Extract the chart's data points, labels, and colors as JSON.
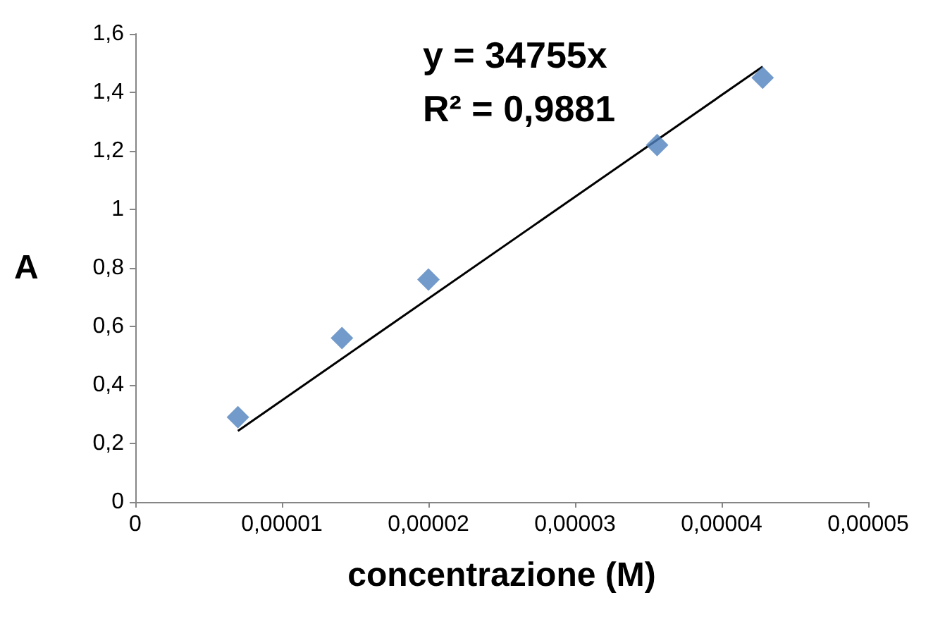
{
  "chart_data": {
    "type": "scatter",
    "xlabel": "concentrazione (M)",
    "ylabel": "A",
    "x": [
      7e-06,
      1.41e-05,
      2e-05,
      3.56e-05,
      4.28e-05
    ],
    "series": [
      {
        "color": "#4f81bd",
        "values": [
          0.29,
          0.56,
          0.76,
          1.22,
          1.45
        ]
      },
      {
        "type": "line",
        "color": "#000000",
        "marker": "none",
        "x": [
          7e-06,
          4.28e-05
        ],
        "values": [
          0.243,
          1.488
        ]
      }
    ],
    "xlim": [
      0,
      5e-05
    ],
    "xticks": [
      0,
      {
        "value": 1e-05,
        "label": "0,00001"
      },
      {
        "value": 2e-05,
        "label": "0,00002"
      },
      {
        "value": 3e-05,
        "label": "0,00003"
      },
      {
        "value": 4e-05,
        "label": "0,00004"
      },
      {
        "value": 5e-05,
        "label": "0,00005"
      }
    ],
    "ylim": [
      0,
      1.6
    ],
    "yticks": [
      0,
      {
        "value": 0.2,
        "label": "0,2"
      },
      {
        "value": 0.4,
        "label": "0,4"
      },
      {
        "value": 0.6,
        "label": "0,6"
      },
      {
        "value": 0.8,
        "label": "0,8"
      },
      1,
      {
        "value": 1.2,
        "label": "1,2"
      },
      {
        "value": 1.4,
        "label": "1,4"
      },
      {
        "value": 1.6,
        "label": "1,6"
      }
    ],
    "grid": false,
    "annotations": [
      "y = 34755x",
      "R² = 0,9881"
    ]
  }
}
